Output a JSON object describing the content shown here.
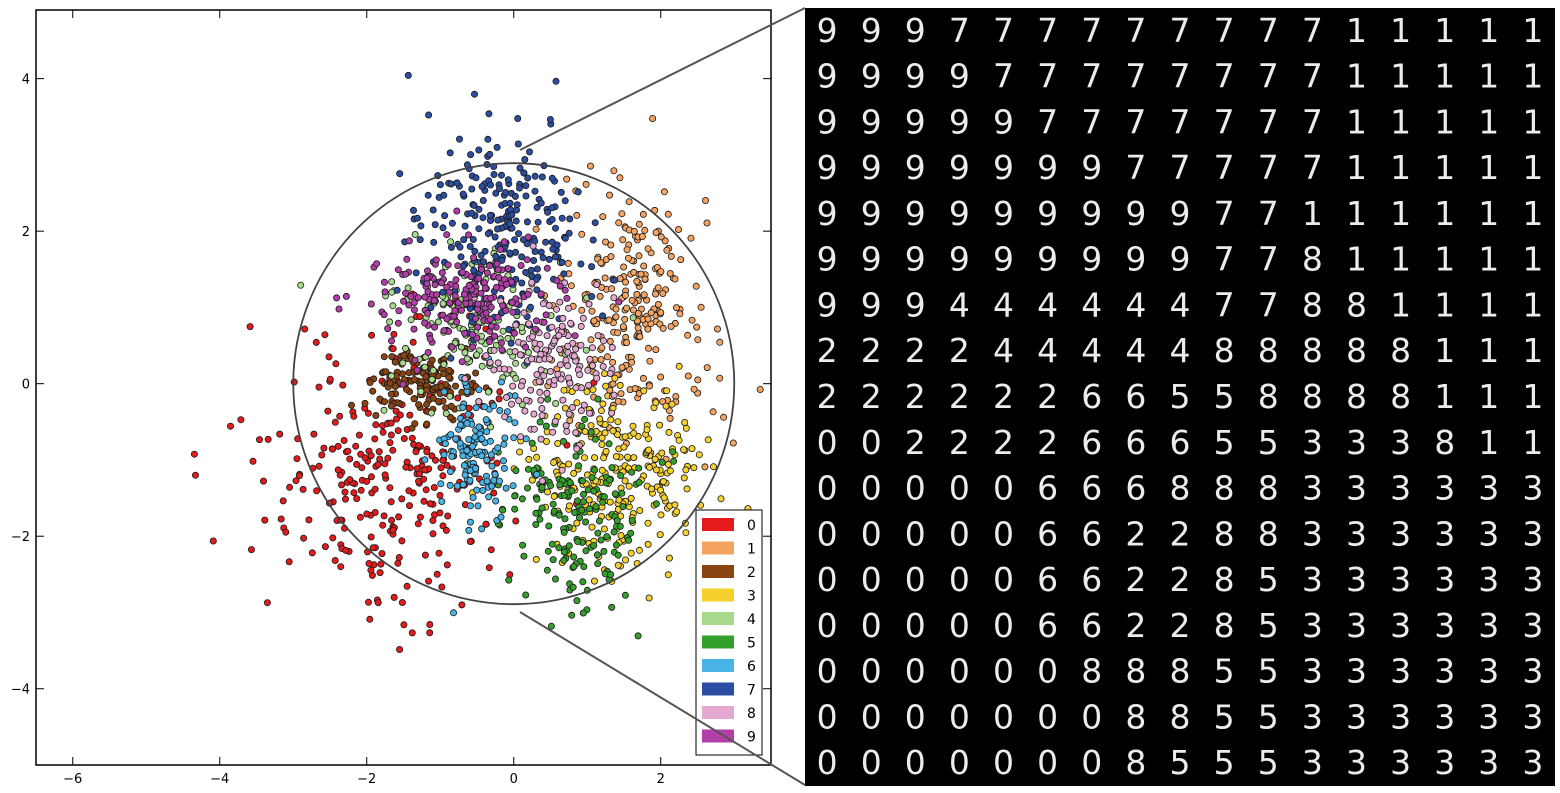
{
  "chart_data": [
    {
      "type": "scatter",
      "title": "",
      "xlabel": "",
      "ylabel": "",
      "xlim": [
        -6.5,
        3.5
      ],
      "ylim": [
        -5,
        4.9
      ],
      "xticks": [
        -6,
        -4,
        -2,
        0,
        2
      ],
      "yticks": [
        -4,
        -2,
        0,
        2,
        4
      ],
      "tick_labels": {
        "x": [
          "−6",
          "−4",
          "−2",
          "0",
          "2"
        ],
        "y": [
          "−4",
          "−2",
          "0",
          "2",
          "4"
        ]
      },
      "grid": false,
      "legend_position": "bottom-right",
      "annotation": {
        "type": "circle",
        "center": [
          0,
          0
        ],
        "radius": 3
      },
      "series": [
        {
          "name": "0",
          "color": "#e41a1c",
          "count": 300,
          "center": [
            -1.7,
            -1.1
          ],
          "spread": [
            0.9,
            0.9
          ]
        },
        {
          "name": "1",
          "color": "#f4a460",
          "count": 260,
          "center": [
            1.6,
            0.9
          ],
          "spread": [
            0.5,
            0.8
          ]
        },
        {
          "name": "2",
          "color": "#8b4513",
          "count": 150,
          "center": [
            -1.2,
            0.0
          ],
          "spread": [
            0.4,
            0.2
          ]
        },
        {
          "name": "3",
          "color": "#f6d12e",
          "count": 260,
          "center": [
            1.4,
            -1.2
          ],
          "spread": [
            0.6,
            0.6
          ]
        },
        {
          "name": "4",
          "color": "#a6d98c",
          "count": 160,
          "center": [
            -0.6,
            0.7
          ],
          "spread": [
            0.6,
            0.5
          ]
        },
        {
          "name": "5",
          "color": "#33a02c",
          "count": 180,
          "center": [
            0.8,
            -1.6
          ],
          "spread": [
            0.5,
            0.6
          ]
        },
        {
          "name": "6",
          "color": "#4ab3e6",
          "count": 140,
          "center": [
            -0.5,
            -0.9
          ],
          "spread": [
            0.25,
            0.5
          ]
        },
        {
          "name": "7",
          "color": "#2b4ea2",
          "count": 260,
          "center": [
            -0.2,
            2.0
          ],
          "spread": [
            0.6,
            0.7
          ]
        },
        {
          "name": "8",
          "color": "#e5a8d0",
          "count": 160,
          "center": [
            0.5,
            0.2
          ],
          "spread": [
            0.4,
            0.5
          ]
        },
        {
          "name": "9",
          "color": "#b23fa7",
          "count": 200,
          "center": [
            -0.8,
            1.1
          ],
          "spread": [
            0.7,
            0.4
          ]
        }
      ]
    },
    {
      "type": "image-grid",
      "title": "",
      "rows": 17,
      "cols": 17,
      "background": "#000000",
      "digits": [
        [
          "9",
          "9",
          "9",
          "7",
          "7",
          "7",
          "7",
          "7",
          "7",
          "7",
          "7",
          "7",
          "1",
          "1",
          "1",
          "1",
          "1"
        ],
        [
          "9",
          "9",
          "9",
          "9",
          "7",
          "7",
          "7",
          "7",
          "7",
          "7",
          "7",
          "7",
          "1",
          "1",
          "1",
          "1",
          "1"
        ],
        [
          "9",
          "9",
          "9",
          "9",
          "9",
          "7",
          "7",
          "7",
          "7",
          "7",
          "7",
          "7",
          "1",
          "1",
          "1",
          "1",
          "1"
        ],
        [
          "9",
          "9",
          "9",
          "9",
          "9",
          "9",
          "9",
          "7",
          "7",
          "7",
          "7",
          "7",
          "1",
          "1",
          "1",
          "1",
          "1"
        ],
        [
          "9",
          "9",
          "9",
          "9",
          "9",
          "9",
          "9",
          "9",
          "9",
          "7",
          "7",
          "1",
          "1",
          "1",
          "1",
          "1",
          "1"
        ],
        [
          "9",
          "9",
          "9",
          "9",
          "9",
          "9",
          "9",
          "9",
          "9",
          "7",
          "7",
          "8",
          "1",
          "1",
          "1",
          "1",
          "1"
        ],
        [
          "9",
          "9",
          "9",
          "4",
          "4",
          "4",
          "4",
          "4",
          "4",
          "7",
          "7",
          "8",
          "8",
          "1",
          "1",
          "1",
          "1"
        ],
        [
          "2",
          "2",
          "2",
          "2",
          "4",
          "4",
          "4",
          "4",
          "4",
          "8",
          "8",
          "8",
          "8",
          "8",
          "1",
          "1",
          "1"
        ],
        [
          "2",
          "2",
          "2",
          "2",
          "2",
          "2",
          "6",
          "6",
          "5",
          "5",
          "8",
          "8",
          "8",
          "8",
          "1",
          "1",
          "1"
        ],
        [
          "0",
          "0",
          "2",
          "2",
          "2",
          "2",
          "6",
          "6",
          "6",
          "5",
          "5",
          "3",
          "3",
          "3",
          "8",
          "1",
          "1"
        ],
        [
          "0",
          "0",
          "0",
          "0",
          "0",
          "6",
          "6",
          "6",
          "8",
          "8",
          "8",
          "3",
          "3",
          "3",
          "3",
          "3",
          "3"
        ],
        [
          "0",
          "0",
          "0",
          "0",
          "0",
          "6",
          "6",
          "2",
          "2",
          "8",
          "8",
          "3",
          "3",
          "3",
          "3",
          "3",
          "3"
        ],
        [
          "0",
          "0",
          "0",
          "0",
          "0",
          "6",
          "6",
          "2",
          "2",
          "8",
          "5",
          "3",
          "3",
          "3",
          "3",
          "3",
          "3"
        ],
        [
          "0",
          "0",
          "0",
          "0",
          "0",
          "6",
          "6",
          "2",
          "2",
          "8",
          "5",
          "3",
          "3",
          "3",
          "3",
          "3",
          "3"
        ],
        [
          "0",
          "0",
          "0",
          "0",
          "0",
          "0",
          "8",
          "8",
          "8",
          "5",
          "5",
          "3",
          "3",
          "3",
          "3",
          "3",
          "3"
        ],
        [
          "0",
          "0",
          "0",
          "0",
          "0",
          "0",
          "0",
          "8",
          "8",
          "5",
          "5",
          "3",
          "3",
          "3",
          "3",
          "3",
          "3"
        ],
        [
          "0",
          "0",
          "0",
          "0",
          "0",
          "0",
          "0",
          "8",
          "5",
          "5",
          "5",
          "3",
          "3",
          "3",
          "3",
          "3",
          "3"
        ]
      ]
    }
  ]
}
